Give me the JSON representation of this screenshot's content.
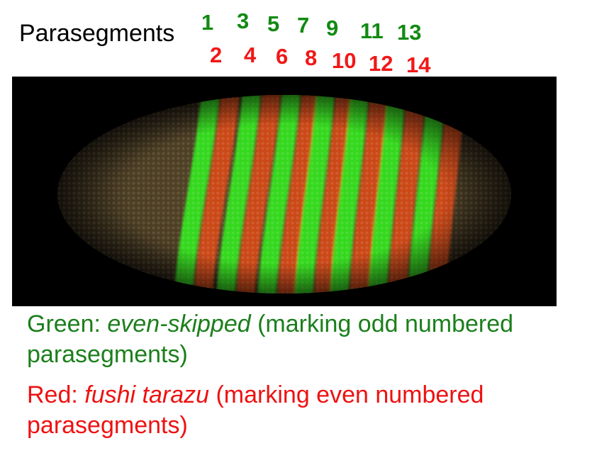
{
  "title": "Parasegments",
  "parasegments": {
    "odd": [
      "1",
      "3",
      "5",
      "7",
      "9",
      "11",
      "13"
    ],
    "even": [
      "2",
      "4",
      "6",
      "8",
      "10",
      "12",
      "14"
    ]
  },
  "colors": {
    "odd_label": "#118a11",
    "even_label": "#f01818",
    "green_stripe": "#33e020",
    "red_stripe": "#d24a18",
    "background": "#000000"
  },
  "legend": {
    "green": {
      "prefix": "Green: ",
      "gene": "even-skipped",
      "line1_suffix": " (marking odd numbered",
      "line2": "parasegments)"
    },
    "red": {
      "prefix": "Red: ",
      "gene": "fushi tarazu",
      "line1_suffix": " (marking even numbered",
      "line2": "parasegments)"
    }
  }
}
